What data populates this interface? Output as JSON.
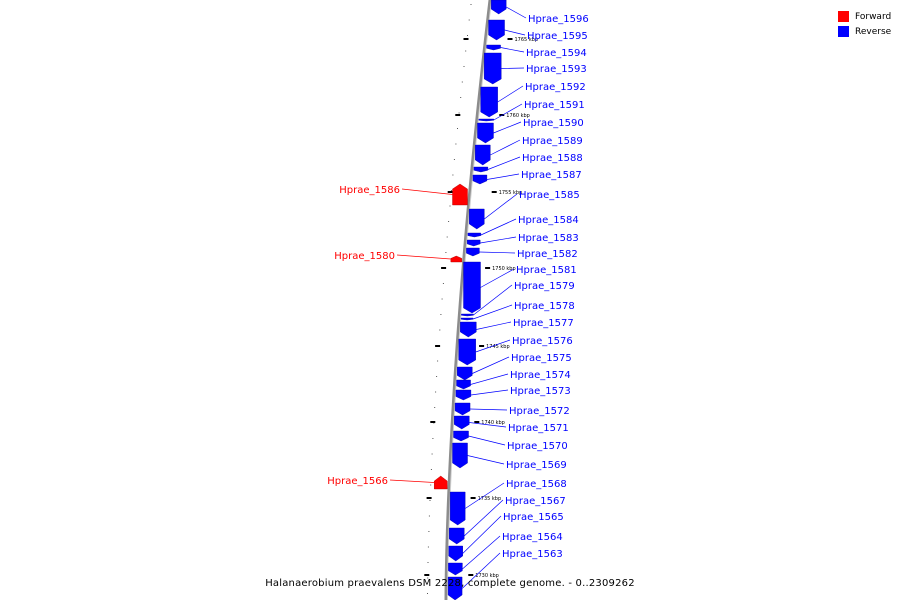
{
  "legend": [
    {
      "label": "Forward",
      "color": "#ff0000"
    },
    {
      "label": "Reverse",
      "color": "#0000ff"
    }
  ],
  "caption": "Halanaerobium praevalens DSM 2228, complete genome. - 0..2309262",
  "colors": {
    "forward": "#ff0000",
    "reverse": "#0000ff",
    "backbone": "#8c8c8c"
  },
  "ticks": [
    {
      "kbp": 1765,
      "label": "1765 kbp"
    },
    {
      "kbp": 1760,
      "label": "1760 kbp"
    },
    {
      "kbp": 1755,
      "label": "1755 kbp"
    },
    {
      "kbp": 1750,
      "label": "1750 kbp"
    },
    {
      "kbp": 1745,
      "label": "1745 kbp"
    },
    {
      "kbp": 1740,
      "label": "1740 kbp"
    },
    {
      "kbp": 1735,
      "label": "1735 kbp"
    },
    {
      "kbp": 1730,
      "label": "1730 kbp"
    }
  ],
  "genes": [
    {
      "name": "Hprae_1596",
      "strand": "reverse"
    },
    {
      "name": "Hprae_1595",
      "strand": "reverse"
    },
    {
      "name": "Hprae_1594",
      "strand": "reverse"
    },
    {
      "name": "Hprae_1593",
      "strand": "reverse"
    },
    {
      "name": "Hprae_1592",
      "strand": "reverse"
    },
    {
      "name": "Hprae_1591",
      "strand": "reverse"
    },
    {
      "name": "Hprae_1590",
      "strand": "reverse"
    },
    {
      "name": "Hprae_1589",
      "strand": "reverse"
    },
    {
      "name": "Hprae_1588",
      "strand": "reverse"
    },
    {
      "name": "Hprae_1587",
      "strand": "reverse"
    },
    {
      "name": "Hprae_1586",
      "strand": "forward"
    },
    {
      "name": "Hprae_1585",
      "strand": "reverse"
    },
    {
      "name": "Hprae_1584",
      "strand": "reverse"
    },
    {
      "name": "Hprae_1583",
      "strand": "reverse"
    },
    {
      "name": "Hprae_1582",
      "strand": "reverse"
    },
    {
      "name": "Hprae_1581",
      "strand": "reverse"
    },
    {
      "name": "Hprae_1580",
      "strand": "forward"
    },
    {
      "name": "Hprae_1579",
      "strand": "reverse"
    },
    {
      "name": "Hprae_1578",
      "strand": "reverse"
    },
    {
      "name": "Hprae_1577",
      "strand": "reverse"
    },
    {
      "name": "Hprae_1576",
      "strand": "reverse"
    },
    {
      "name": "Hprae_1575",
      "strand": "reverse"
    },
    {
      "name": "Hprae_1574",
      "strand": "reverse"
    },
    {
      "name": "Hprae_1573",
      "strand": "reverse"
    },
    {
      "name": "Hprae_1572",
      "strand": "reverse"
    },
    {
      "name": "Hprae_1571",
      "strand": "reverse"
    },
    {
      "name": "Hprae_1570",
      "strand": "reverse"
    },
    {
      "name": "Hprae_1569",
      "strand": "reverse"
    },
    {
      "name": "Hprae_1568",
      "strand": "reverse"
    },
    {
      "name": "Hprae_1567",
      "strand": "reverse"
    },
    {
      "name": "Hprae_1566",
      "strand": "forward"
    },
    {
      "name": "Hprae_1565",
      "strand": "reverse"
    },
    {
      "name": "Hprae_1564",
      "strand": "reverse"
    },
    {
      "name": "Hprae_1563",
      "strand": "reverse"
    }
  ]
}
